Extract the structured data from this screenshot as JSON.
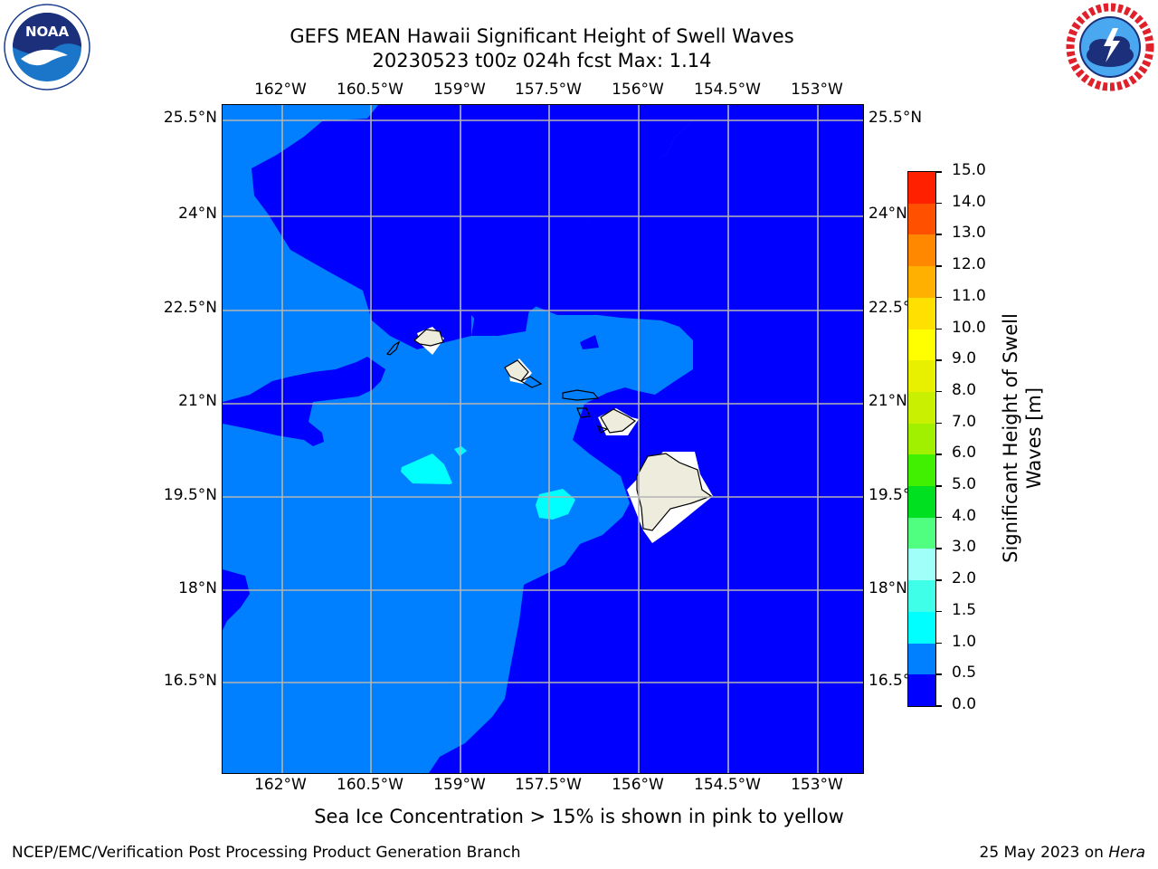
{
  "header": {
    "title_line1": "GEFS MEAN Hawaii Significant Height of Swell Waves",
    "title_line2": "20230523 t00z 024h fcst   Max: 1.14"
  },
  "logos": {
    "left": {
      "icon": "noaa-logo-icon",
      "text": "NOAA",
      "ring_text": "NATIONAL OCEANIC AND ATMOSPHERIC ADMINISTRATION · U.S. DEPARTMENT OF COMMERCE"
    },
    "right": {
      "icon": "nws-logo-icon",
      "ring_text": "NATIONAL WEATHER SERVICE"
    }
  },
  "map": {
    "lon_labels": [
      "162°W",
      "160.5°W",
      "159°W",
      "157.5°W",
      "156°W",
      "154.5°W",
      "153°W"
    ],
    "lat_labels": [
      "25.5°N",
      "24°N",
      "22.5°N",
      "21°N",
      "19.5°N",
      "18°N",
      "16.5°N"
    ],
    "colors": {
      "level_0_05": "#0000ff",
      "level_05_10": "#0080ff",
      "level_10_15": "#00ffff",
      "land": "#eeecdc",
      "grid": "#b4b4b4"
    }
  },
  "colorbar": {
    "title": "Significant Height of Swell Waves [m]",
    "tick_labels": [
      "0.0",
      "0.5",
      "1.0",
      "1.5",
      "2.0",
      "3.0",
      "4.0",
      "5.0",
      "6.0",
      "7.0",
      "8.0",
      "9.0",
      "10.0",
      "11.0",
      "12.0",
      "13.0",
      "14.0",
      "15.0"
    ],
    "colors": [
      "#0000ff",
      "#0080ff",
      "#00ffff",
      "#40ffe8",
      "#a0fff8",
      "#50ff80",
      "#00e020",
      "#40f000",
      "#a0f000",
      "#c8f000",
      "#e8f000",
      "#ffff00",
      "#ffe000",
      "#ffb000",
      "#ff8800",
      "#ff5000",
      "#ff2000",
      "#ff0000"
    ]
  },
  "footer": {
    "note": "Sea Ice Concentration > 15% is shown in pink to yellow",
    "left": "NCEP/EMC/Verification Post Processing Product Generation Branch",
    "right_date": "25 May 2023 on ",
    "right_host": "Hera"
  }
}
